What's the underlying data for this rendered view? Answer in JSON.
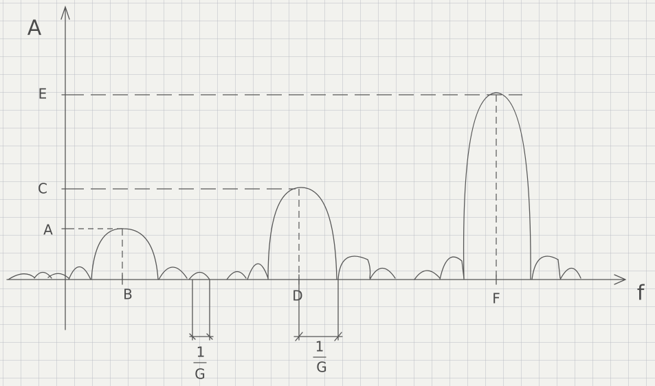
{
  "axes": {
    "y_label": "A",
    "x_label": "f"
  },
  "y_marks": [
    "E",
    "C",
    "A"
  ],
  "x_marks": [
    "B",
    "D",
    "F"
  ],
  "widths": [
    {
      "numerator": "1",
      "denominator": "G"
    },
    {
      "numerator": "1",
      "denominator": "G"
    }
  ]
}
